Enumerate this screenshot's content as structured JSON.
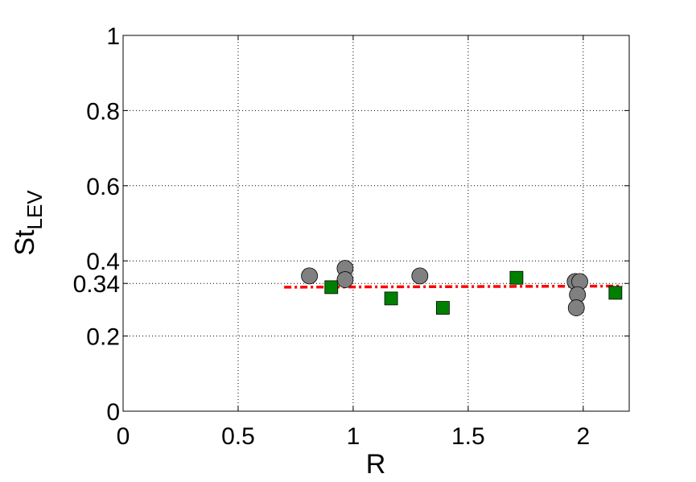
{
  "chart_data": {
    "type": "scatter",
    "xlabel": "R",
    "ylabel": "St",
    "ylabel_subscript": "LEV",
    "xlim": [
      0,
      2.2
    ],
    "ylim": [
      0,
      1
    ],
    "x_ticks": [
      0,
      0.5,
      1,
      1.5,
      2
    ],
    "x_tick_labels": [
      "0",
      "0.5",
      "1",
      "1.5",
      "2"
    ],
    "y_ticks": [
      0,
      0.2,
      0.34,
      0.4,
      0.6,
      0.8,
      1
    ],
    "y_tick_labels": [
      "0",
      "0.2",
      "0.34",
      "0.4",
      "0.6",
      "0.8",
      "1"
    ],
    "grid": true,
    "series": [
      {
        "marker": "circle",
        "color": "#808080",
        "points": [
          [
            0.81,
            0.36
          ],
          [
            0.965,
            0.38
          ],
          [
            0.965,
            0.35
          ],
          [
            1.29,
            0.36
          ],
          [
            1.965,
            0.345
          ],
          [
            1.985,
            0.345
          ],
          [
            1.975,
            0.31
          ],
          [
            1.97,
            0.275
          ]
        ]
      },
      {
        "marker": "square",
        "color": "#008000",
        "points": [
          [
            0.905,
            0.33
          ],
          [
            1.165,
            0.3
          ],
          [
            1.39,
            0.275
          ],
          [
            1.71,
            0.355
          ],
          [
            2.14,
            0.315
          ]
        ]
      }
    ],
    "fit_line": {
      "color": "#ff0000",
      "style": "dash-dot",
      "x": [
        0.7,
        2.17
      ],
      "y": [
        0.33,
        0.333
      ]
    }
  }
}
